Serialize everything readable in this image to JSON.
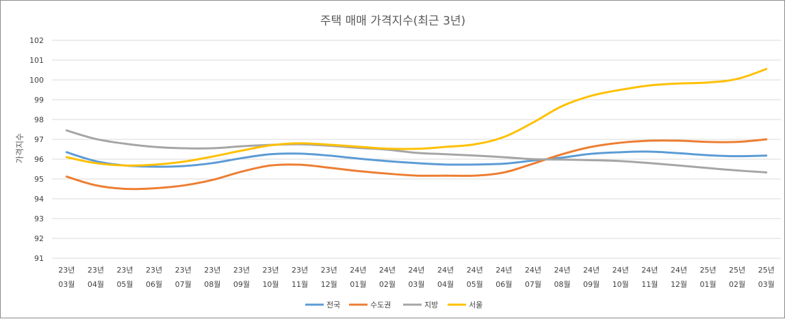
{
  "chart_data": {
    "type": "line",
    "title": "주택 매매 가격지수(최근 3년)",
    "xlabel": "",
    "ylabel": "가격지수",
    "ylim": [
      91,
      102
    ],
    "yticks": [
      "91",
      "92",
      "93",
      "94",
      "95",
      "96",
      "97",
      "98",
      "99",
      "100",
      "101",
      "102"
    ],
    "categories": [
      [
        "23년",
        "03월"
      ],
      [
        "23년",
        "04월"
      ],
      [
        "23년",
        "05월"
      ],
      [
        "23년",
        "06월"
      ],
      [
        "23년",
        "07월"
      ],
      [
        "23년",
        "08월"
      ],
      [
        "23년",
        "09월"
      ],
      [
        "23년",
        "10월"
      ],
      [
        "23년",
        "11월"
      ],
      [
        "23년",
        "12월"
      ],
      [
        "24년",
        "01월"
      ],
      [
        "24년",
        "02월"
      ],
      [
        "24년",
        "03월"
      ],
      [
        "24년",
        "04월"
      ],
      [
        "24년",
        "05월"
      ],
      [
        "24년",
        "06월"
      ],
      [
        "24년",
        "07월"
      ],
      [
        "24년",
        "08월"
      ],
      [
        "24년",
        "09월"
      ],
      [
        "24년",
        "10월"
      ],
      [
        "24년",
        "11월"
      ],
      [
        "24년",
        "12월"
      ],
      [
        "25년",
        "01월"
      ],
      [
        "25년",
        "02월"
      ],
      [
        "25년",
        "03월"
      ]
    ],
    "series": [
      {
        "name": "전국",
        "color": "#5B9BD5",
        "values": [
          96.35,
          95.9,
          95.68,
          95.62,
          95.65,
          95.8,
          96.05,
          96.25,
          96.28,
          96.18,
          96.03,
          95.9,
          95.8,
          95.73,
          95.73,
          95.77,
          95.93,
          96.08,
          96.27,
          96.35,
          96.38,
          96.3,
          96.2,
          96.15,
          96.18
        ]
      },
      {
        "name": "수도권",
        "color": "#ED7D31",
        "values": [
          95.12,
          94.68,
          94.5,
          94.53,
          94.67,
          94.95,
          95.37,
          95.68,
          95.72,
          95.57,
          95.4,
          95.27,
          95.17,
          95.17,
          95.17,
          95.33,
          95.77,
          96.25,
          96.62,
          96.83,
          96.93,
          96.93,
          96.87,
          96.87,
          97.0
        ]
      },
      {
        "name": "지방",
        "color": "#A5A5A5",
        "values": [
          97.45,
          97.02,
          96.78,
          96.62,
          96.55,
          96.55,
          96.65,
          96.72,
          96.75,
          96.68,
          96.57,
          96.48,
          96.32,
          96.25,
          96.18,
          96.1,
          96.0,
          95.98,
          95.95,
          95.9,
          95.8,
          95.68,
          95.55,
          95.43,
          95.33
        ]
      },
      {
        "name": "서울",
        "color": "#FFC000",
        "values": [
          96.1,
          95.8,
          95.68,
          95.72,
          95.87,
          96.13,
          96.43,
          96.7,
          96.8,
          96.73,
          96.63,
          96.53,
          96.52,
          96.62,
          96.75,
          97.12,
          97.85,
          98.68,
          99.2,
          99.5,
          99.72,
          99.82,
          99.87,
          100.05,
          100.55
        ]
      }
    ],
    "legend_position": "bottom",
    "grid": true
  }
}
